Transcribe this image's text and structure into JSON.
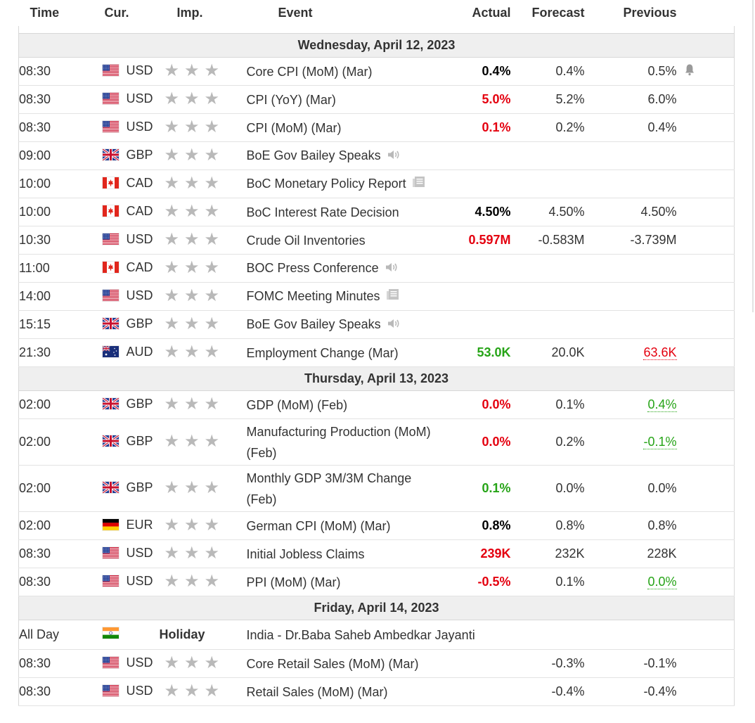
{
  "columns": {
    "time": "Time",
    "cur": "Cur.",
    "imp": "Imp.",
    "event": "Event",
    "actual": "Actual",
    "forecast": "Forecast",
    "previous": "Previous"
  },
  "colors": {
    "negative": "#e4000f",
    "positive": "#26a417",
    "star": "#b9b9b9",
    "day_bg": "#efefef"
  },
  "days": [
    {
      "label": "Wednesday, April 12, 2023",
      "rows": [
        {
          "time": "08:30",
          "flag": "us-flag-icon",
          "cur": "USD",
          "stars": 3,
          "event": "Core CPI (MoM) (Mar)",
          "icon": "",
          "actual": "0.4%",
          "actual_color": "black",
          "forecast": "0.4%",
          "previous": "0.5%",
          "previous_style": "",
          "alert": true,
          "tall": false
        },
        {
          "time": "08:30",
          "flag": "us-flag-icon",
          "cur": "USD",
          "stars": 3,
          "event": "CPI (YoY) (Mar)",
          "icon": "",
          "actual": "5.0%",
          "actual_color": "red",
          "forecast": "5.2%",
          "previous": "6.0%",
          "previous_style": "",
          "alert": false,
          "tall": false
        },
        {
          "time": "08:30",
          "flag": "us-flag-icon",
          "cur": "USD",
          "stars": 3,
          "event": "CPI (MoM) (Mar)",
          "icon": "",
          "actual": "0.1%",
          "actual_color": "red",
          "forecast": "0.2%",
          "previous": "0.4%",
          "previous_style": "",
          "alert": false,
          "tall": false
        },
        {
          "time": "09:00",
          "flag": "gb-flag-icon",
          "cur": "GBP",
          "stars": 3,
          "event": "BoE Gov Bailey Speaks",
          "icon": "speaker-icon",
          "actual": "",
          "actual_color": "black",
          "forecast": "",
          "previous": "",
          "previous_style": "",
          "alert": false,
          "tall": false
        },
        {
          "time": "10:00",
          "flag": "ca-flag-icon",
          "cur": "CAD",
          "stars": 3,
          "event": "BoC Monetary Policy Report",
          "icon": "report-icon",
          "actual": "",
          "actual_color": "black",
          "forecast": "",
          "previous": "",
          "previous_style": "",
          "alert": false,
          "tall": false
        },
        {
          "time": "10:00",
          "flag": "ca-flag-icon",
          "cur": "CAD",
          "stars": 3,
          "event": "BoC Interest Rate Decision",
          "icon": "",
          "actual": "4.50%",
          "actual_color": "black",
          "forecast": "4.50%",
          "previous": "4.50%",
          "previous_style": "",
          "alert": false,
          "tall": false
        },
        {
          "time": "10:30",
          "flag": "us-flag-icon",
          "cur": "USD",
          "stars": 3,
          "event": "Crude Oil Inventories",
          "icon": "",
          "actual": "0.597M",
          "actual_color": "red",
          "forecast": "-0.583M",
          "previous": "-3.739M",
          "previous_style": "",
          "alert": false,
          "tall": false
        },
        {
          "time": "11:00",
          "flag": "ca-flag-icon",
          "cur": "CAD",
          "stars": 3,
          "event": "BOC Press Conference",
          "icon": "speaker-icon",
          "actual": "",
          "actual_color": "black",
          "forecast": "",
          "previous": "",
          "previous_style": "",
          "alert": false,
          "tall": false
        },
        {
          "time": "14:00",
          "flag": "us-flag-icon",
          "cur": "USD",
          "stars": 3,
          "event": "FOMC Meeting Minutes",
          "icon": "report-icon",
          "actual": "",
          "actual_color": "black",
          "forecast": "",
          "previous": "",
          "previous_style": "",
          "alert": false,
          "tall": false
        },
        {
          "time": "15:15",
          "flag": "gb-flag-icon",
          "cur": "GBP",
          "stars": 3,
          "event": "BoE Gov Bailey Speaks",
          "icon": "speaker-icon",
          "actual": "",
          "actual_color": "black",
          "forecast": "",
          "previous": "",
          "previous_style": "",
          "alert": false,
          "tall": false
        },
        {
          "time": "21:30",
          "flag": "au-flag-icon",
          "cur": "AUD",
          "stars": 3,
          "event": "Employment Change (Mar)",
          "icon": "",
          "actual": "53.0K",
          "actual_color": "green",
          "forecast": "20.0K",
          "previous": "63.6K",
          "previous_style": "rev-red",
          "alert": false,
          "tall": false
        }
      ]
    },
    {
      "label": "Thursday, April 13, 2023",
      "rows": [
        {
          "time": "02:00",
          "flag": "gb-flag-icon",
          "cur": "GBP",
          "stars": 3,
          "event": "GDP (MoM) (Feb)",
          "icon": "",
          "actual": "0.0%",
          "actual_color": "red",
          "forecast": "0.1%",
          "previous": "0.4%",
          "previous_style": "rev-green",
          "alert": false,
          "tall": false
        },
        {
          "time": "02:00",
          "flag": "gb-flag-icon",
          "cur": "GBP",
          "stars": 3,
          "event": "Manufacturing Production (MoM) (Feb)",
          "icon": "",
          "actual": "0.0%",
          "actual_color": "red",
          "forecast": "0.2%",
          "previous": "-0.1%",
          "previous_style": "rev-green",
          "alert": false,
          "tall": true
        },
        {
          "time": "02:00",
          "flag": "gb-flag-icon",
          "cur": "GBP",
          "stars": 3,
          "event": "Monthly GDP 3M/3M Change (Feb)",
          "icon": "",
          "actual": "0.1%",
          "actual_color": "green",
          "forecast": "0.0%",
          "previous": "0.0%",
          "previous_style": "",
          "alert": false,
          "tall": true
        },
        {
          "time": "02:00",
          "flag": "de-flag-icon",
          "cur": "EUR",
          "stars": 3,
          "event": "German CPI (MoM) (Mar)",
          "icon": "",
          "actual": "0.8%",
          "actual_color": "black",
          "forecast": "0.8%",
          "previous": "0.8%",
          "previous_style": "",
          "alert": false,
          "tall": false
        },
        {
          "time": "08:30",
          "flag": "us-flag-icon",
          "cur": "USD",
          "stars": 3,
          "event": "Initial Jobless Claims",
          "icon": "",
          "actual": "239K",
          "actual_color": "red",
          "forecast": "232K",
          "previous": "228K",
          "previous_style": "",
          "alert": false,
          "tall": false
        },
        {
          "time": "08:30",
          "flag": "us-flag-icon",
          "cur": "USD",
          "stars": 3,
          "event": "PPI (MoM) (Mar)",
          "icon": "",
          "actual": "-0.5%",
          "actual_color": "red",
          "forecast": "0.1%",
          "previous": "0.0%",
          "previous_style": "rev-green",
          "alert": false,
          "tall": false
        }
      ]
    },
    {
      "label": "Friday, April 14, 2023",
      "holiday": {
        "time": "All Day",
        "flag": "in-flag-icon",
        "label": "Holiday",
        "event": "India - Dr.Baba Saheb Ambedkar Jayanti"
      },
      "rows": [
        {
          "time": "08:30",
          "flag": "us-flag-icon",
          "cur": "USD",
          "stars": 3,
          "event": "Core Retail Sales (MoM) (Mar)",
          "icon": "",
          "actual": "",
          "actual_color": "black",
          "forecast": "-0.3%",
          "previous": "-0.1%",
          "previous_style": "",
          "alert": false,
          "tall": false
        },
        {
          "time": "08:30",
          "flag": "us-flag-icon",
          "cur": "USD",
          "stars": 3,
          "event": "Retail Sales (MoM) (Mar)",
          "icon": "",
          "actual": "",
          "actual_color": "black",
          "forecast": "-0.4%",
          "previous": "-0.4%",
          "previous_style": "",
          "alert": false,
          "tall": false
        }
      ]
    }
  ]
}
